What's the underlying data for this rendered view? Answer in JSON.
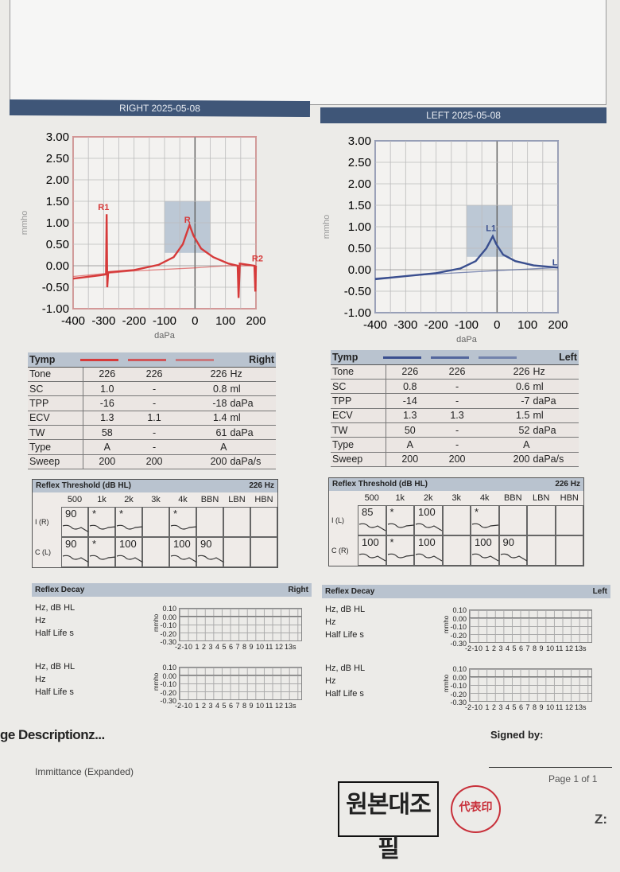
{
  "right": {
    "header": "RIGHT  2025-05-08",
    "color": "#d63a3a",
    "tymp": {
      "title": "Tymp",
      "side": "Right",
      "rows": [
        {
          "label": "Tone",
          "v": [
            "226",
            "226",
            "226"
          ],
          "unit": "Hz"
        },
        {
          "label": "SC",
          "v": [
            "1.0",
            "-",
            "0.8"
          ],
          "unit": "ml"
        },
        {
          "label": "TPP",
          "v": [
            "-16",
            "-",
            "-18"
          ],
          "unit": "daPa"
        },
        {
          "label": "ECV",
          "v": [
            "1.3",
            "1.1",
            "1.4"
          ],
          "unit": "ml"
        },
        {
          "label": "TW",
          "v": [
            "58",
            "-",
            "61"
          ],
          "unit": "daPa"
        },
        {
          "label": "Type",
          "v": [
            "A",
            "-",
            "A"
          ],
          "unit": ""
        },
        {
          "label": "Sweep",
          "v": [
            "200",
            "200",
            "200"
          ],
          "unit": "daPa/s"
        }
      ]
    },
    "reflex": {
      "title": "Reflex Threshold (dB HL)",
      "freq": "226 Hz",
      "cols": [
        "500",
        "1k",
        "2k",
        "3k",
        "4k",
        "BBN",
        "LBN",
        "HBN"
      ],
      "rows": [
        {
          "label": "I (R)",
          "v": [
            "90",
            "*",
            "*",
            "",
            "*",
            "",
            "",
            ""
          ]
        },
        {
          "label": "C (L)",
          "v": [
            "90",
            "*",
            "100",
            "",
            "100",
            "90",
            "",
            ""
          ]
        }
      ]
    },
    "decay": {
      "title": "Reflex Decay",
      "side": "Right"
    }
  },
  "left": {
    "header": "LEFT  2025-05-08",
    "color": "#3a4f8f",
    "tymp": {
      "title": "Tymp",
      "side": "Left",
      "rows": [
        {
          "label": "Tone",
          "v": [
            "226",
            "226",
            "226"
          ],
          "unit": "Hz"
        },
        {
          "label": "SC",
          "v": [
            "0.8",
            "-",
            "0.6"
          ],
          "unit": "ml"
        },
        {
          "label": "TPP",
          "v": [
            "-14",
            "-",
            "-7"
          ],
          "unit": "daPa"
        },
        {
          "label": "ECV",
          "v": [
            "1.3",
            "1.3",
            "1.5"
          ],
          "unit": "ml"
        },
        {
          "label": "TW",
          "v": [
            "50",
            "-",
            "52"
          ],
          "unit": "daPa"
        },
        {
          "label": "Type",
          "v": [
            "A",
            "-",
            "A"
          ],
          "unit": ""
        },
        {
          "label": "Sweep",
          "v": [
            "200",
            "200",
            "200"
          ],
          "unit": "daPa/s"
        }
      ]
    },
    "reflex": {
      "title": "Reflex Threshold (dB HL)",
      "freq": "226 Hz",
      "cols": [
        "500",
        "1k",
        "2k",
        "3k",
        "4k",
        "BBN",
        "LBN",
        "HBN"
      ],
      "rows": [
        {
          "label": "I (L)",
          "v": [
            "85",
            "*",
            "100",
            "",
            "*",
            "",
            "",
            ""
          ]
        },
        {
          "label": "C (R)",
          "v": [
            "100",
            "*",
            "100",
            "",
            "100",
            "90",
            "",
            ""
          ]
        }
      ]
    },
    "decay": {
      "title": "Reflex Decay",
      "side": "Left"
    }
  },
  "decay_labels": {
    "hz_db": "Hz,  dB HL",
    "hz": "Hz",
    "half_life": "Half Life  s",
    "ylabel": "mmho",
    "yticks": [
      "0.10",
      "0.00",
      "-0.10",
      "-0.20",
      "-0.30"
    ],
    "xticks": [
      "-2",
      "-1",
      "0",
      "1",
      "2",
      "3",
      "4",
      "5",
      "6",
      "7",
      "8",
      "9",
      "10",
      "11",
      "12",
      "13s"
    ]
  },
  "chart_data": [
    {
      "type": "line",
      "title": "RIGHT 2025-05-08",
      "xlabel": "daPa",
      "ylabel": "mmho",
      "xlim": [
        -400,
        200
      ],
      "ylim": [
        -1,
        3
      ],
      "xticks": [
        "-400",
        "-300",
        "-200",
        "-100",
        "0",
        "100",
        "200"
      ],
      "yticks": [
        "3.00",
        "2.50",
        "2.00",
        "1.50",
        "1.00",
        "0.50",
        "0.00",
        "-0.50",
        "-1.00"
      ],
      "normal_region": {
        "x": [
          -100,
          50
        ],
        "y": [
          0.3,
          1.5
        ]
      },
      "series": [
        {
          "name": "Tymp 1",
          "points": [
            [
              -400,
              -0.3
            ],
            [
              -310,
              -0.22
            ],
            [
              -292,
              -0.2
            ],
            [
              -290,
              1.2
            ],
            [
              -288,
              -0.5
            ],
            [
              -285,
              -0.15
            ],
            [
              -200,
              -0.1
            ],
            [
              -120,
              0.02
            ],
            [
              -70,
              0.2
            ],
            [
              -40,
              0.5
            ],
            [
              -18,
              0.95
            ],
            [
              -5,
              0.7
            ],
            [
              20,
              0.4
            ],
            [
              60,
              0.2
            ],
            [
              110,
              0.05
            ],
            [
              140,
              0.0
            ],
            [
              143,
              -0.75
            ],
            [
              147,
              0.05
            ],
            [
              195,
              0.0
            ],
            [
              198,
              -0.6
            ],
            [
              200,
              0.0
            ]
          ]
        },
        {
          "name": "Tymp 2",
          "points": [
            [
              -400,
              -0.25
            ],
            [
              -200,
              -0.12
            ],
            [
              0,
              -0.05
            ],
            [
              100,
              0.0
            ],
            [
              200,
              0.0
            ]
          ]
        }
      ],
      "annotations": [
        "R1",
        "R",
        "R2"
      ]
    },
    {
      "type": "line",
      "title": "LEFT 2025-05-08",
      "xlabel": "daPa",
      "ylabel": "mmho",
      "xlim": [
        -400,
        200
      ],
      "ylim": [
        -1,
        3
      ],
      "xticks": [
        "-400",
        "-300",
        "-200",
        "-100",
        "0",
        "100",
        "200"
      ],
      "yticks": [
        "3.00",
        "2.50",
        "2.00",
        "1.50",
        "1.00",
        "0.50",
        "0.00",
        "-0.50",
        "-1.00"
      ],
      "normal_region": {
        "x": [
          -100,
          50
        ],
        "y": [
          0.3,
          1.5
        ]
      },
      "series": [
        {
          "name": "Tymp 1",
          "points": [
            [
              -400,
              -0.22
            ],
            [
              -300,
              -0.15
            ],
            [
              -200,
              -0.08
            ],
            [
              -120,
              0.03
            ],
            [
              -70,
              0.2
            ],
            [
              -35,
              0.5
            ],
            [
              -14,
              0.78
            ],
            [
              -3,
              0.6
            ],
            [
              20,
              0.35
            ],
            [
              60,
              0.2
            ],
            [
              120,
              0.1
            ],
            [
              200,
              0.05
            ]
          ]
        },
        {
          "name": "Tymp 2",
          "points": [
            [
              -400,
              -0.2
            ],
            [
              -200,
              -0.1
            ],
            [
              0,
              -0.02
            ],
            [
              200,
              0.05
            ]
          ]
        }
      ],
      "annotations": [
        "L1",
        "L"
      ]
    }
  ],
  "footer": {
    "description": "ge Descriptionz...",
    "report_type": "Immittance (Expanded)",
    "signed_by": "Signed by:",
    "page": "Page 1 of 1",
    "stamp": "원본대조필",
    "seal": "代表印",
    "corner": "Z:"
  }
}
